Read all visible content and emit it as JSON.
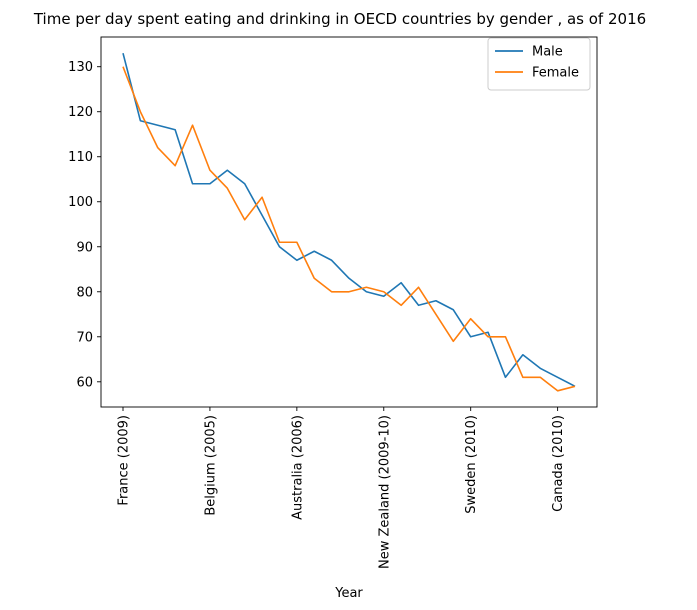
{
  "chart_data": {
    "type": "line",
    "title": "Time per day spent eating and drinking in OECD countries by gender , as of 2016",
    "xlabel": "Year",
    "ylabel": "",
    "ylim": [
      54.4,
      136.6
    ],
    "yticks": [
      60,
      70,
      80,
      90,
      100,
      110,
      120,
      130
    ],
    "x_tick_labels": [
      "France (2009)",
      "Belgium (2005)",
      "Australia (2006)",
      "New Zealand (2009-10)",
      "Sweden (2010)",
      "Canada (2010)"
    ],
    "x_tick_positions": [
      0,
      5,
      10,
      15,
      20,
      25
    ],
    "x_count": 27,
    "grid": false,
    "legend_position": "upper right",
    "series": [
      {
        "name": "Male",
        "color": "#1f77b4",
        "values": [
          133,
          118,
          117,
          116,
          104,
          104,
          107,
          104,
          97,
          90,
          87,
          89,
          87,
          83,
          80,
          79,
          82,
          77,
          78,
          76,
          70,
          71,
          61,
          66,
          63,
          61,
          59
        ]
      },
      {
        "name": "Female",
        "color": "#ff7f0e",
        "values": [
          130,
          120,
          112,
          108,
          117,
          107,
          103,
          96,
          101,
          91,
          91,
          83,
          80,
          80,
          81,
          80,
          77,
          81,
          75,
          69,
          74,
          70,
          70,
          61,
          61,
          58,
          59
        ]
      }
    ]
  }
}
